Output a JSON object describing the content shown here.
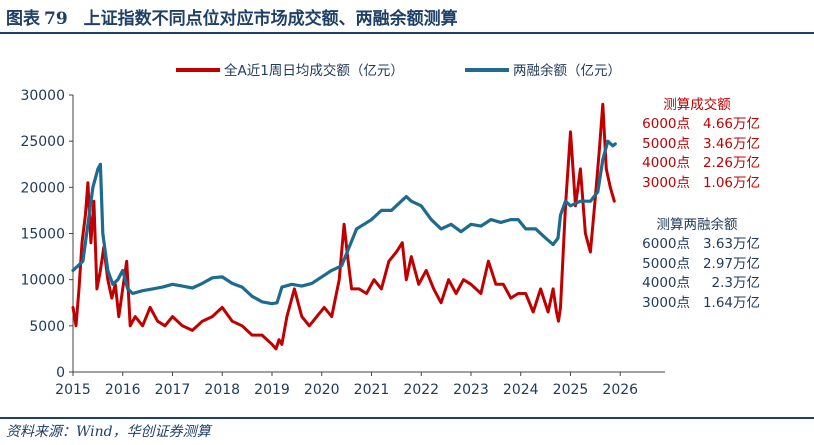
{
  "title": {
    "prefix": "图表",
    "number": "79",
    "text": "上证指数不同点位对应市场成交额、两融余额测算"
  },
  "source": "资料来源：Wind，华创证券测算",
  "colors": {
    "turnover": "#c00000",
    "margin": "#1f6a8f",
    "brand": "#1e3f66"
  },
  "chart_data": {
    "type": "line",
    "xlim": [
      2015,
      2026.9
    ],
    "ylim": [
      0,
      30000
    ],
    "x_ticks": [
      "2015",
      "2016",
      "2017",
      "2018",
      "2019",
      "2020",
      "2021",
      "2022",
      "2023",
      "2024",
      "2025",
      "2026"
    ],
    "y_ticks": [
      "0",
      "5000",
      "10000",
      "15000",
      "20000",
      "25000",
      "30000"
    ],
    "legend_position": "top",
    "series": [
      {
        "name": "全A近1周日均成交额（亿元）",
        "x": [
          2015.0,
          2015.06,
          2015.12,
          2015.18,
          2015.25,
          2015.3,
          2015.36,
          2015.42,
          2015.48,
          2015.55,
          2015.62,
          2015.7,
          2015.78,
          2015.85,
          2015.92,
          2016.0,
          2016.08,
          2016.15,
          2016.25,
          2016.4,
          2016.55,
          2016.7,
          2016.85,
          2017.0,
          2017.2,
          2017.4,
          2017.6,
          2017.8,
          2018.0,
          2018.2,
          2018.4,
          2018.6,
          2018.8,
          2019.0,
          2019.08,
          2019.14,
          2019.2,
          2019.3,
          2019.45,
          2019.6,
          2019.75,
          2019.9,
          2020.05,
          2020.2,
          2020.35,
          2020.45,
          2020.52,
          2020.6,
          2020.75,
          2020.9,
          2021.05,
          2021.2,
          2021.35,
          2021.5,
          2021.62,
          2021.7,
          2021.8,
          2021.95,
          2022.1,
          2022.25,
          2022.4,
          2022.55,
          2022.7,
          2022.85,
          2023.0,
          2023.2,
          2023.35,
          2023.5,
          2023.65,
          2023.8,
          2023.95,
          2024.1,
          2024.25,
          2024.4,
          2024.55,
          2024.65,
          2024.72,
          2024.76,
          2024.8,
          2024.9,
          2025.0,
          2025.1,
          2025.2,
          2025.3,
          2025.4,
          2025.5,
          2025.58,
          2025.65,
          2025.72,
          2025.8,
          2025.88
        ],
        "values": [
          7000,
          5000,
          9000,
          14000,
          17000,
          20500,
          14000,
          18500,
          9000,
          11000,
          13500,
          10000,
          8000,
          9500,
          6000,
          9000,
          12000,
          5000,
          6000,
          5000,
          7000,
          5500,
          5000,
          6000,
          5000,
          4500,
          5500,
          6000,
          7000,
          5500,
          5000,
          4000,
          4000,
          3000,
          2500,
          3500,
          3000,
          6000,
          9000,
          6000,
          5000,
          6000,
          7000,
          6000,
          10000,
          16000,
          12500,
          9000,
          9000,
          8500,
          10000,
          9000,
          12000,
          13000,
          14000,
          10000,
          12500,
          9500,
          11000,
          9000,
          7500,
          10000,
          8500,
          10000,
          9500,
          8500,
          12000,
          9500,
          9500,
          8000,
          8500,
          8500,
          6500,
          9000,
          6500,
          9000,
          6500,
          5500,
          7000,
          18000,
          26000,
          18000,
          22000,
          15000,
          13000,
          19000,
          24000,
          29000,
          22000,
          20000,
          18500
        ]
      },
      {
        "name": "两融余额（亿元）",
        "x": [
          2015.0,
          2015.1,
          2015.2,
          2015.3,
          2015.4,
          2015.5,
          2015.55,
          2015.6,
          2015.7,
          2015.8,
          2015.9,
          2016.0,
          2016.1,
          2016.2,
          2016.4,
          2016.6,
          2016.8,
          2017.0,
          2017.2,
          2017.4,
          2017.6,
          2017.8,
          2018.0,
          2018.2,
          2018.4,
          2018.6,
          2018.8,
          2019.0,
          2019.1,
          2019.2,
          2019.4,
          2019.6,
          2019.8,
          2020.0,
          2020.2,
          2020.4,
          2020.55,
          2020.7,
          2020.85,
          2021.0,
          2021.2,
          2021.4,
          2021.6,
          2021.7,
          2021.8,
          2022.0,
          2022.2,
          2022.4,
          2022.6,
          2022.8,
          2023.0,
          2023.2,
          2023.4,
          2023.6,
          2023.8,
          2023.95,
          2024.1,
          2024.3,
          2024.5,
          2024.65,
          2024.75,
          2024.8,
          2024.9,
          2025.0,
          2025.2,
          2025.4,
          2025.55,
          2025.65,
          2025.75,
          2025.85,
          2025.9
        ],
        "values": [
          11000,
          11500,
          12000,
          16000,
          20000,
          22000,
          22500,
          15000,
          11000,
          9500,
          10000,
          11000,
          9000,
          8500,
          8800,
          9000,
          9200,
          9500,
          9300,
          9100,
          9600,
          10200,
          10300,
          9600,
          9200,
          8200,
          7600,
          7400,
          7500,
          9200,
          9500,
          9300,
          9600,
          10300,
          11000,
          11500,
          13500,
          15500,
          16000,
          16500,
          17500,
          17500,
          18500,
          19000,
          18500,
          18000,
          16500,
          15500,
          16000,
          15200,
          16000,
          15800,
          16500,
          16200,
          16500,
          16500,
          15500,
          15500,
          14500,
          13800,
          14500,
          17000,
          18500,
          18000,
          18500,
          18500,
          19500,
          23000,
          25000,
          24500,
          24700
        ]
      }
    ]
  },
  "annotations": {
    "turnover": {
      "header": "测算成交额",
      "rows": [
        {
          "level": "6000点",
          "value": "4.66万亿"
        },
        {
          "level": "5000点",
          "value": "3.46万亿"
        },
        {
          "level": "4000点",
          "value": "2.26万亿"
        },
        {
          "level": "3000点",
          "value": "1.06万亿"
        }
      ]
    },
    "margin": {
      "header": "测算两融余额",
      "rows": [
        {
          "level": "6000点",
          "value": "3.63万亿"
        },
        {
          "level": "5000点",
          "value": "2.97万亿"
        },
        {
          "level": "4000点",
          "value": "2.3万亿"
        },
        {
          "level": "3000点",
          "value": "1.64万亿"
        }
      ]
    }
  }
}
